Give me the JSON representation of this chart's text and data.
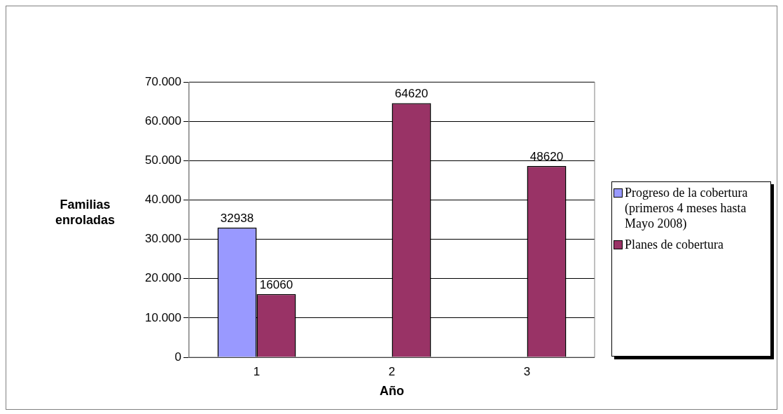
{
  "chart_data": {
    "type": "bar",
    "xlabel": "Año",
    "ylabel": "Familias enroladas",
    "categories": [
      "1",
      "2",
      "3"
    ],
    "series": [
      {
        "name": "Progreso de la cobertura (primeros 4 meses hasta Mayo 2008)",
        "color": "#9999ff",
        "values": [
          32938,
          null,
          null
        ]
      },
      {
        "name": "Planes de cobertura",
        "color": "#993366",
        "values": [
          16060,
          64620,
          48620
        ]
      }
    ],
    "ylim": [
      0,
      70000
    ],
    "yticks": [
      0,
      {
        "value": 10000,
        "label": "10.000"
      },
      {
        "value": 20000,
        "label": "20.000"
      },
      {
        "value": 30000,
        "label": "30.000"
      },
      {
        "value": 40000,
        "label": "40.000"
      },
      {
        "value": 50000,
        "label": "50.000"
      },
      {
        "value": 60000,
        "label": "60.000"
      },
      {
        "value": 70000,
        "label": "70.000"
      }
    ],
    "grid": "y",
    "legend": "right",
    "data_labels": true
  }
}
